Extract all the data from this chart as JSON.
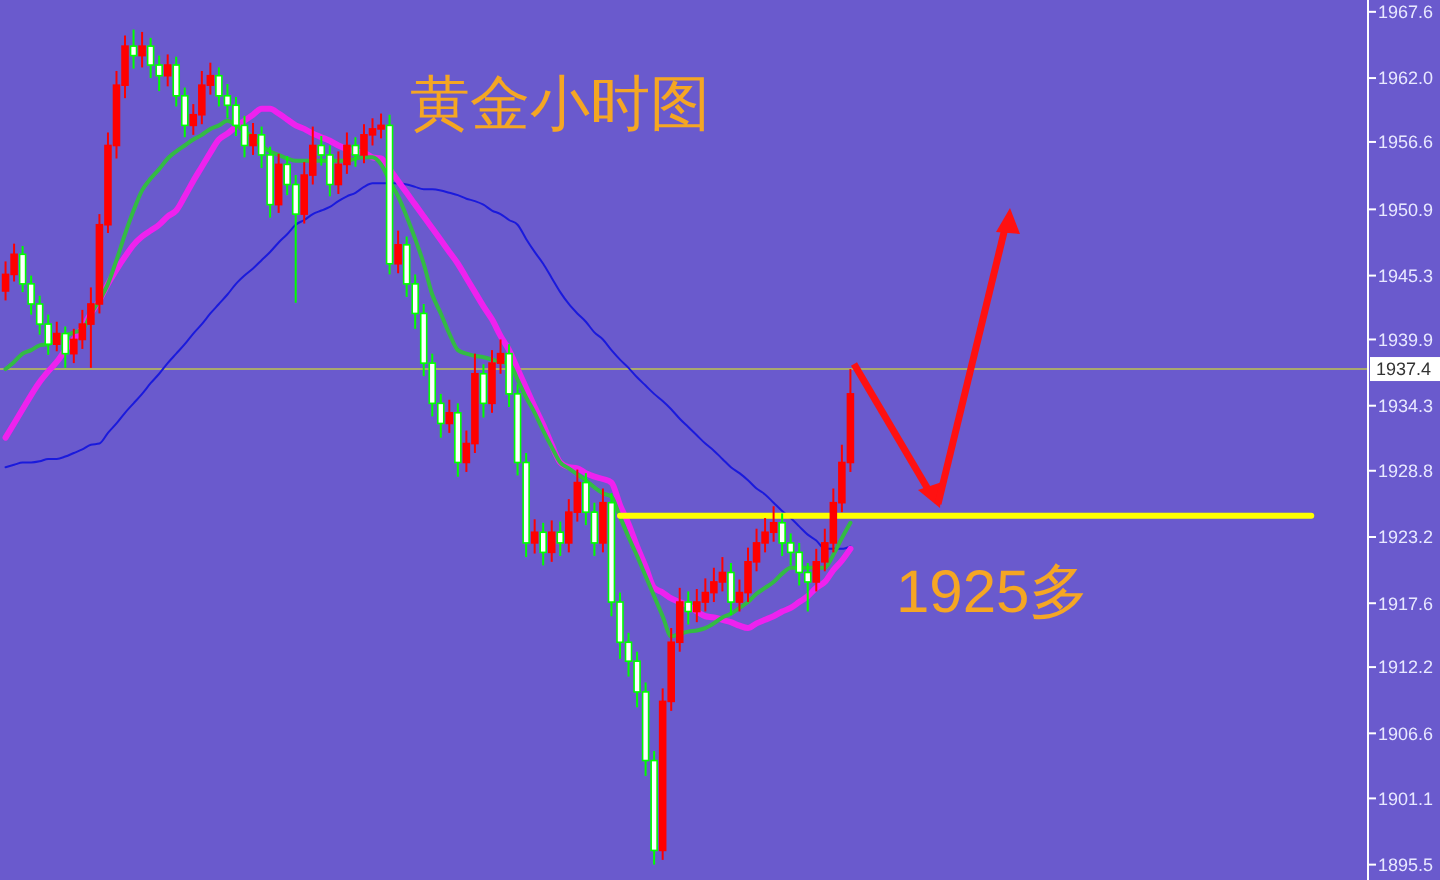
{
  "chart_data": {
    "type": "candlestick",
    "title": "黄金小时图",
    "annotations": [
      "1925多"
    ],
    "categories": [
      null,
      null,
      null,
      null,
      null,
      null,
      null,
      null,
      null,
      null,
      null,
      null,
      null,
      null,
      null,
      null,
      null,
      null,
      null,
      null,
      null,
      null,
      null,
      null,
      null,
      null,
      null,
      null,
      null,
      null,
      null,
      null,
      null,
      null,
      null,
      null,
      null,
      null,
      null,
      null,
      null,
      null,
      null,
      null,
      null,
      null,
      null,
      null,
      null,
      null,
      null,
      null,
      null,
      null,
      null,
      null,
      null,
      null,
      null,
      null,
      null,
      null,
      null,
      null,
      null,
      null,
      null,
      null,
      null,
      null,
      null,
      null,
      null,
      null,
      null,
      null,
      null,
      null,
      null,
      null,
      null,
      null,
      null,
      null,
      null,
      null,
      null,
      null,
      null,
      null,
      null,
      null,
      null,
      null,
      null,
      null,
      null,
      null,
      null,
      null,
      null,
      null,
      null,
      null,
      null,
      null,
      null,
      null,
      null,
      null,
      null,
      null,
      null,
      null,
      null,
      null,
      null,
      null,
      null,
      null,
      null,
      null,
      null,
      null,
      null,
      null,
      null,
      null,
      null,
      null,
      null,
      null,
      null,
      null,
      null,
      null,
      null,
      null,
      null,
      null,
      null,
      null,
      null,
      null,
      null,
      null,
      null,
      null,
      null,
      null,
      null,
      null,
      null,
      null,
      null,
      null,
      null,
      null,
      null,
      null
    ],
    "ohlc": [
      [
        1944.0,
        1946.5,
        1943.2,
        1945.4
      ],
      [
        1945.4,
        1948.0,
        1944.8,
        1947.1
      ],
      [
        1947.1,
        1947.8,
        1943.9,
        1944.6
      ],
      [
        1944.6,
        1945.3,
        1942.0,
        1942.9
      ],
      [
        1942.9,
        1943.6,
        1940.3,
        1941.2
      ],
      [
        1941.2,
        1942.0,
        1938.6,
        1939.5
      ],
      [
        1939.5,
        1941.4,
        1938.9,
        1940.4
      ],
      [
        1940.4,
        1941.0,
        1937.5,
        1938.7
      ],
      [
        1938.7,
        1940.8,
        1937.9,
        1939.9
      ],
      [
        1939.9,
        1942.4,
        1939.1,
        1941.2
      ],
      [
        1941.2,
        1944.3,
        1937.5,
        1942.9
      ],
      [
        1942.9,
        1950.5,
        1942.1,
        1949.6
      ],
      [
        1949.6,
        1957.4,
        1948.9,
        1956.3
      ],
      [
        1956.3,
        1962.6,
        1955.2,
        1961.4
      ],
      [
        1961.4,
        1965.6,
        1960.3,
        1964.7
      ],
      [
        1964.7,
        1966.1,
        1962.8,
        1963.9
      ],
      [
        1963.9,
        1965.9,
        1962.9,
        1964.7
      ],
      [
        1964.7,
        1965.4,
        1962.0,
        1963.1
      ],
      [
        1963.1,
        1963.9,
        1960.9,
        1962.2
      ],
      [
        1962.2,
        1964.0,
        1961.3,
        1963.1
      ],
      [
        1963.1,
        1963.8,
        1959.6,
        1960.5
      ],
      [
        1960.5,
        1961.2,
        1957.0,
        1958.0
      ],
      [
        1958.0,
        1959.8,
        1957.2,
        1958.9
      ],
      [
        1958.9,
        1962.6,
        1958.1,
        1961.4
      ],
      [
        1961.4,
        1963.3,
        1960.6,
        1962.2
      ],
      [
        1962.2,
        1962.9,
        1959.6,
        1960.5
      ],
      [
        1960.5,
        1961.5,
        1958.6,
        1959.7
      ],
      [
        1959.7,
        1960.4,
        1957.1,
        1958.0
      ],
      [
        1958.0,
        1958.8,
        1955.3,
        1956.3
      ],
      [
        1956.3,
        1958.2,
        1955.5,
        1957.2
      ],
      [
        1957.2,
        1957.9,
        1954.4,
        1955.5
      ],
      [
        1955.5,
        1956.2,
        1950.2,
        1951.3
      ],
      [
        1951.3,
        1955.6,
        1950.6,
        1954.7
      ],
      [
        1954.7,
        1955.4,
        1952.1,
        1953.0
      ],
      [
        1953.0,
        1953.8,
        1943.0,
        1950.5
      ],
      [
        1950.5,
        1954.9,
        1949.7,
        1953.8
      ],
      [
        1953.8,
        1957.9,
        1953.0,
        1956.3
      ],
      [
        1956.3,
        1957.1,
        1954.6,
        1955.5
      ],
      [
        1955.5,
        1956.3,
        1952.0,
        1953.0
      ],
      [
        1953.0,
        1955.8,
        1952.2,
        1954.7
      ],
      [
        1954.7,
        1957.4,
        1953.9,
        1956.3
      ],
      [
        1956.3,
        1957.0,
        1954.5,
        1955.5
      ],
      [
        1955.5,
        1958.1,
        1954.8,
        1957.2
      ],
      [
        1957.2,
        1958.6,
        1956.3,
        1957.7
      ],
      [
        1957.7,
        1959.0,
        1956.9,
        1958.0
      ],
      [
        1958.0,
        1958.9,
        1945.4,
        1946.3
      ],
      [
        1946.3,
        1949.1,
        1945.5,
        1947.9
      ],
      [
        1947.9,
        1948.6,
        1943.5,
        1944.6
      ],
      [
        1944.6,
        1945.4,
        1940.8,
        1942.1
      ],
      [
        1942.1,
        1942.9,
        1936.8,
        1937.9
      ],
      [
        1937.9,
        1938.7,
        1933.4,
        1934.5
      ],
      [
        1934.5,
        1935.3,
        1931.6,
        1932.8
      ],
      [
        1932.8,
        1934.8,
        1932.0,
        1933.7
      ],
      [
        1933.7,
        1934.5,
        1928.3,
        1929.5
      ],
      [
        1929.5,
        1932.2,
        1928.7,
        1931.1
      ],
      [
        1931.1,
        1938.7,
        1930.3,
        1937.0
      ],
      [
        1937.0,
        1937.8,
        1933.3,
        1934.5
      ],
      [
        1934.5,
        1939.0,
        1933.7,
        1937.9
      ],
      [
        1937.9,
        1939.9,
        1937.0,
        1938.7
      ],
      [
        1938.7,
        1939.5,
        1934.2,
        1935.3
      ],
      [
        1935.3,
        1936.1,
        1928.4,
        1929.5
      ],
      [
        1929.5,
        1930.3,
        1921.5,
        1922.7
      ],
      [
        1922.7,
        1924.7,
        1921.8,
        1923.6
      ],
      [
        1923.6,
        1924.4,
        1920.8,
        1921.9
      ],
      [
        1921.9,
        1924.6,
        1921.1,
        1923.6
      ],
      [
        1923.6,
        1924.5,
        1921.6,
        1922.7
      ],
      [
        1922.7,
        1926.4,
        1921.9,
        1925.3
      ],
      [
        1925.3,
        1928.9,
        1924.5,
        1927.8
      ],
      [
        1927.8,
        1928.6,
        1924.2,
        1925.3
      ],
      [
        1925.3,
        1926.1,
        1921.6,
        1922.7
      ],
      [
        1922.7,
        1927.3,
        1921.9,
        1926.1
      ],
      [
        1926.1,
        1926.9,
        1916.5,
        1917.7
      ],
      [
        1917.7,
        1918.5,
        1912.9,
        1914.3
      ],
      [
        1914.3,
        1915.1,
        1911.4,
        1912.7
      ],
      [
        1912.7,
        1913.5,
        1908.8,
        1910.1
      ],
      [
        1910.1,
        1910.9,
        1903.0,
        1904.3
      ],
      [
        1904.3,
        1905.1,
        1895.5,
        1896.7
      ],
      [
        1896.7,
        1910.4,
        1895.9,
        1909.3
      ],
      [
        1909.3,
        1915.5,
        1908.5,
        1914.3
      ],
      [
        1914.3,
        1918.9,
        1913.5,
        1917.7
      ],
      [
        1917.7,
        1918.6,
        1915.8,
        1916.9
      ],
      [
        1916.9,
        1918.8,
        1916.0,
        1917.7
      ],
      [
        1917.7,
        1919.7,
        1916.9,
        1918.5
      ],
      [
        1918.5,
        1920.6,
        1917.7,
        1919.4
      ],
      [
        1919.4,
        1921.5,
        1918.6,
        1920.2
      ],
      [
        1920.2,
        1921.0,
        1916.6,
        1917.7
      ],
      [
        1917.7,
        1919.6,
        1916.9,
        1918.5
      ],
      [
        1918.5,
        1922.3,
        1917.7,
        1921.1
      ],
      [
        1921.1,
        1923.9,
        1920.3,
        1922.7
      ],
      [
        1922.7,
        1924.8,
        1921.9,
        1923.6
      ],
      [
        1923.6,
        1925.8,
        1922.8,
        1924.4
      ],
      [
        1924.4,
        1925.2,
        1921.6,
        1922.7
      ],
      [
        1922.7,
        1923.5,
        1920.8,
        1921.9
      ],
      [
        1921.9,
        1922.7,
        1919.1,
        1920.2
      ],
      [
        1920.2,
        1921.0,
        1916.9,
        1919.4
      ],
      [
        1919.4,
        1922.2,
        1918.6,
        1921.1
      ],
      [
        1921.1,
        1923.9,
        1920.3,
        1922.7
      ],
      [
        1922.7,
        1927.3,
        1921.9,
        1926.1
      ],
      [
        1926.1,
        1931.0,
        1925.3,
        1929.5
      ],
      [
        1929.5,
        1937.4,
        1928.7,
        1935.3
      ],
      null,
      null,
      null,
      null,
      null,
      null,
      null,
      null,
      null,
      null,
      null,
      null,
      null,
      null,
      null,
      null,
      null,
      null,
      null,
      null,
      null,
      null,
      null,
      null,
      null,
      null,
      null,
      null,
      null,
      null,
      null,
      null,
      null,
      null,
      null,
      null,
      null,
      null,
      null,
      null,
      null,
      null,
      null,
      null,
      null,
      null,
      null,
      null,
      null,
      null,
      null,
      null,
      null,
      null,
      null,
      null,
      null,
      null,
      null,
      null
    ],
    "series": [
      {
        "type": "line",
        "color": "#1a1adc",
        "values": [
          1929.1,
          1929.3,
          1929.5,
          1929.5,
          1929.6,
          1929.8,
          1929.8,
          1930.0,
          1930.3,
          1930.6,
          1931.0,
          1931.1,
          1932.0,
          1932.8,
          1933.7,
          1934.5,
          1935.3,
          1936.2,
          1937.0,
          1937.9,
          1938.7,
          1939.5,
          1940.4,
          1941.2,
          1942.1,
          1942.9,
          1943.7,
          1944.6,
          1945.3,
          1945.9,
          1946.6,
          1947.3,
          1948.1,
          1948.8,
          1949.6,
          1950.0,
          1950.5,
          1950.8,
          1951.1,
          1951.6,
          1952.0,
          1952.3,
          1952.8,
          1953.1,
          1953.1,
          1953.1,
          1953.1,
          1953.0,
          1952.8,
          1952.6,
          1952.6,
          1952.5,
          1952.3,
          1952.1,
          1951.8,
          1951.6,
          1951.3,
          1950.8,
          1950.5,
          1950.0,
          1949.6,
          1948.4,
          1947.3,
          1946.3,
          1945.1,
          1943.9,
          1942.9,
          1942.1,
          1941.4,
          1940.5,
          1939.9,
          1939.0,
          1938.2,
          1937.5,
          1936.7,
          1936.0,
          1935.3,
          1934.7,
          1934.0,
          1933.2,
          1932.5,
          1931.8,
          1931.1,
          1930.5,
          1929.8,
          1929.1,
          1928.6,
          1928.0,
          1927.3,
          1926.8,
          1926.1,
          1925.4,
          1924.8,
          1924.1,
          1923.4,
          1922.9,
          1922.2,
          1922.2,
          1922.2,
          1922.4,
          null,
          null,
          null,
          null,
          null,
          null,
          null,
          null,
          null,
          null,
          null,
          null,
          null,
          null,
          null,
          null,
          null,
          null,
          null,
          null,
          null,
          null,
          null,
          null,
          null,
          null,
          null,
          null,
          null,
          null,
          null,
          null,
          null,
          null,
          null,
          null,
          null,
          null,
          null,
          null,
          null,
          null,
          null,
          null,
          null,
          null,
          null,
          null,
          null,
          null,
          null,
          null,
          null,
          null,
          null,
          null,
          null,
          null,
          null,
          null
        ]
      },
      {
        "type": "line",
        "color": "#ee22ee",
        "values": [
          1931.6,
          1932.8,
          1934.0,
          1935.2,
          1936.3,
          1937.2,
          1938.0,
          1939.0,
          1939.9,
          1940.9,
          1942.1,
          1943.2,
          1944.6,
          1945.8,
          1946.9,
          1947.9,
          1948.6,
          1949.1,
          1949.6,
          1950.3,
          1950.8,
          1952.0,
          1953.3,
          1954.5,
          1955.7,
          1956.8,
          1957.3,
          1957.9,
          1958.4,
          1958.9,
          1959.4,
          1959.4,
          1959.0,
          1958.5,
          1958.0,
          1957.7,
          1957.3,
          1957.0,
          1956.7,
          1956.3,
          1956.0,
          1955.8,
          1955.7,
          1955.3,
          1955.2,
          1954.3,
          1953.3,
          1952.3,
          1951.3,
          1950.3,
          1949.3,
          1948.3,
          1947.3,
          1946.3,
          1945.1,
          1943.9,
          1942.7,
          1941.6,
          1940.2,
          1939.0,
          1937.4,
          1935.8,
          1934.2,
          1932.7,
          1931.0,
          1929.5,
          1929.1,
          1929.0,
          1928.6,
          1928.3,
          1928.1,
          1927.8,
          1925.9,
          1924.3,
          1922.4,
          1920.7,
          1918.9,
          1918.5,
          1918.0,
          1917.7,
          1917.4,
          1916.9,
          1916.5,
          1916.4,
          1916.2,
          1916.0,
          1915.7,
          1915.5,
          1915.9,
          1916.2,
          1916.5,
          1916.9,
          1917.2,
          1917.7,
          1918.2,
          1918.9,
          1919.4,
          1920.4,
          1921.2,
          1922.2,
          null,
          null,
          null,
          null,
          null,
          null,
          null,
          null,
          null,
          null,
          null,
          null,
          null,
          null,
          null,
          null,
          null,
          null,
          null,
          null,
          null,
          null,
          null,
          null,
          null,
          null,
          null,
          null,
          null,
          null,
          null,
          null,
          null,
          null,
          null,
          null,
          null,
          null,
          null,
          null,
          null,
          null,
          null,
          null,
          null,
          null,
          null,
          null,
          null,
          null,
          null,
          null,
          null,
          null,
          null,
          null,
          null,
          null,
          null,
          null
        ]
      },
      {
        "type": "line",
        "color": "#33bb44",
        "values": [
          1937.4,
          1938.0,
          1938.7,
          1939.0,
          1939.4,
          1939.5,
          1939.9,
          1940.2,
          1940.5,
          1940.7,
          1942.1,
          1943.2,
          1944.6,
          1946.6,
          1948.8,
          1950.8,
          1952.5,
          1953.5,
          1954.3,
          1955.2,
          1955.8,
          1956.3,
          1956.8,
          1957.2,
          1957.7,
          1958.0,
          1958.4,
          1958.0,
          1957.5,
          1957.0,
          1956.3,
          1955.8,
          1955.5,
          1955.2,
          1955.0,
          1955.0,
          1955.0,
          1955.0,
          1955.0,
          1955.0,
          1955.0,
          1955.2,
          1955.3,
          1955.3,
          1954.7,
          1953.3,
          1952.0,
          1950.3,
          1948.4,
          1946.3,
          1943.7,
          1942.1,
          1940.4,
          1939.0,
          1938.7,
          1938.5,
          1938.4,
          1938.2,
          1938.0,
          1937.9,
          1936.5,
          1935.0,
          1933.7,
          1932.2,
          1930.8,
          1929.5,
          1929.0,
          1928.5,
          1928.0,
          1927.4,
          1926.9,
          1926.6,
          1924.9,
          1923.2,
          1921.6,
          1919.9,
          1918.2,
          1916.5,
          1914.8,
          1915.0,
          1915.2,
          1915.3,
          1915.5,
          1915.9,
          1916.4,
          1916.7,
          1917.2,
          1917.7,
          1918.4,
          1918.9,
          1919.4,
          1920.1,
          1920.6,
          1920.6,
          1920.6,
          1920.6,
          1920.6,
          1921.7,
          1923.1,
          1924.4,
          null,
          null,
          null,
          null,
          null,
          null,
          null,
          null,
          null,
          null,
          null,
          null,
          null,
          null,
          null,
          null,
          null,
          null,
          null,
          null,
          null,
          null,
          null,
          null,
          null,
          null,
          null,
          null,
          null,
          null,
          null,
          null,
          null,
          null,
          null,
          null,
          null,
          null,
          null,
          null,
          null,
          null,
          null,
          null,
          null,
          null,
          null,
          null,
          null,
          null,
          null,
          null,
          null,
          null,
          null,
          null,
          null,
          null,
          null,
          null
        ]
      },
      {
        "type": "line",
        "color": "#ffff00",
        "values": [
          null,
          null,
          null,
          null,
          null,
          null,
          null,
          null,
          null,
          null,
          null,
          null,
          null,
          null,
          null,
          null,
          null,
          null,
          null,
          null,
          null,
          null,
          null,
          null,
          null,
          null,
          null,
          null,
          null,
          null,
          null,
          null,
          null,
          null,
          null,
          null,
          null,
          null,
          null,
          null,
          null,
          null,
          null,
          null,
          null,
          null,
          null,
          null,
          null,
          null,
          null,
          null,
          null,
          null,
          null,
          null,
          null,
          null,
          null,
          null,
          null,
          null,
          null,
          null,
          null,
          null,
          null,
          null,
          null,
          null,
          null,
          null,
          1925,
          1925,
          1925,
          1925,
          1925,
          1925,
          1925,
          1925,
          1925,
          1925,
          1925,
          1925,
          1925,
          1925,
          1925,
          1925,
          1925,
          1925,
          1925,
          1925,
          1925,
          1925,
          1925,
          1925,
          1925,
          1925,
          1925,
          1925,
          1925,
          1925,
          1925,
          1925,
          1925,
          1925,
          1925,
          1925,
          1925,
          1925,
          1925,
          1925,
          1925,
          1925,
          1925,
          1925,
          1925,
          1925,
          1925,
          1925,
          1925,
          1925,
          1925,
          1925,
          1925,
          1925,
          1925,
          1925,
          1925,
          1925,
          1925,
          1925,
          1925,
          1925,
          1925,
          1925,
          1925,
          1925,
          1925,
          1925,
          1925,
          1925,
          1925,
          1925,
          1925,
          1925,
          1925,
          1925,
          1925,
          1925,
          1925,
          1925,
          1925,
          1925,
          null,
          null,
          null,
          null,
          null,
          null
        ]
      }
    ],
    "ref_lines": [
      {
        "axis": "y",
        "value": 1937.4,
        "label": "1937.4",
        "color": "#a8a870"
      }
    ],
    "ylim": [
      1894.2,
      1968.6
    ],
    "yticks": [
      1967.6,
      {
        "value": 1962.0,
        "label": "1962.0"
      },
      1956.6,
      1950.9,
      1945.3,
      1939.9,
      1934.3,
      1928.8,
      1923.2,
      1917.6,
      1912.2,
      1906.6,
      1901.1,
      1895.5
    ],
    "tick_labels": "y",
    "grid": false
  }
}
